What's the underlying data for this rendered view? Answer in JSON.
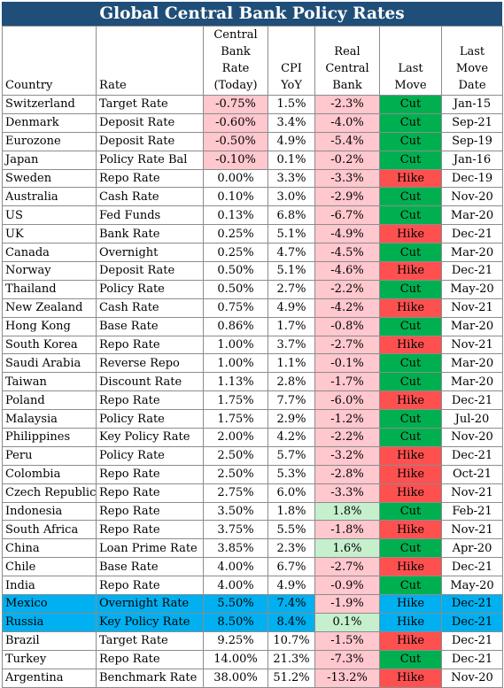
{
  "chart_data": {
    "type": "table",
    "title": "Global Central Bank Policy Rates",
    "columns": [
      "Country",
      "Rate",
      "Central Bank Rate (Today)",
      "CPI YoY",
      "Real Central Bank",
      "Last Move",
      "Last Move Date"
    ],
    "rows": [
      [
        "Switzerland",
        "Target Rate",
        "-0.75%",
        "1.5%",
        "-2.3%",
        "Cut",
        "Jan-15"
      ],
      [
        "Denmark",
        "Deposit Rate",
        "-0.60%",
        "3.4%",
        "-4.0%",
        "Cut",
        "Sep-21"
      ],
      [
        "Eurozone",
        "Deposit Rate",
        "-0.50%",
        "4.9%",
        "-5.4%",
        "Cut",
        "Sep-19"
      ],
      [
        "Japan",
        "Policy Rate Bal",
        "-0.10%",
        "0.1%",
        "-0.2%",
        "Cut",
        "Jan-16"
      ],
      [
        "Sweden",
        "Repo Rate",
        "0.00%",
        "3.3%",
        "-3.3%",
        "Hike",
        "Dec-19"
      ],
      [
        "Australia",
        "Cash Rate",
        "0.10%",
        "3.0%",
        "-2.9%",
        "Cut",
        "Nov-20"
      ],
      [
        "US",
        "Fed Funds",
        "0.13%",
        "6.8%",
        "-6.7%",
        "Cut",
        "Mar-20"
      ],
      [
        "UK",
        "Bank Rate",
        "0.25%",
        "5.1%",
        "-4.9%",
        "Hike",
        "Dec-21"
      ],
      [
        "Canada",
        "Overnight",
        "0.25%",
        "4.7%",
        "-4.5%",
        "Cut",
        "Mar-20"
      ],
      [
        "Norway",
        "Deposit Rate",
        "0.50%",
        "5.1%",
        "-4.6%",
        "Hike",
        "Dec-21"
      ],
      [
        "Thailand",
        "Policy Rate",
        "0.50%",
        "2.7%",
        "-2.2%",
        "Cut",
        "May-20"
      ],
      [
        "New Zealand",
        "Cash Rate",
        "0.75%",
        "4.9%",
        "-4.2%",
        "Hike",
        "Nov-21"
      ],
      [
        "Hong Kong",
        "Base Rate",
        "0.86%",
        "1.7%",
        "-0.8%",
        "Cut",
        "Mar-20"
      ],
      [
        "South Korea",
        "Repo Rate",
        "1.00%",
        "3.7%",
        "-2.7%",
        "Hike",
        "Nov-21"
      ],
      [
        "Saudi Arabia",
        "Reverse Repo",
        "1.00%",
        "1.1%",
        "-0.1%",
        "Cut",
        "Mar-20"
      ],
      [
        "Taiwan",
        "Discount Rate",
        "1.13%",
        "2.8%",
        "-1.7%",
        "Cut",
        "Mar-20"
      ],
      [
        "Poland",
        "Repo Rate",
        "1.75%",
        "7.7%",
        "-6.0%",
        "Hike",
        "Dec-21"
      ],
      [
        "Malaysia",
        "Policy Rate",
        "1.75%",
        "2.9%",
        "-1.2%",
        "Cut",
        "Jul-20"
      ],
      [
        "Philippines",
        "Key Policy Rate",
        "2.00%",
        "4.2%",
        "-2.2%",
        "Cut",
        "Nov-20"
      ],
      [
        "Peru",
        "Policy Rate",
        "2.50%",
        "5.7%",
        "-3.2%",
        "Hike",
        "Dec-21"
      ],
      [
        "Colombia",
        "Repo Rate",
        "2.50%",
        "5.3%",
        "-2.8%",
        "Hike",
        "Oct-21"
      ],
      [
        "Czech Republic",
        "Repo Rate",
        "2.75%",
        "6.0%",
        "-3.3%",
        "Hike",
        "Nov-21"
      ],
      [
        "Indonesia",
        "Repo Rate",
        "3.50%",
        "1.8%",
        "1.8%",
        "Cut",
        "Feb-21"
      ],
      [
        "South Africa",
        "Repo Rate",
        "3.75%",
        "5.5%",
        "-1.8%",
        "Hike",
        "Nov-21"
      ],
      [
        "China",
        "Loan Prime Rate",
        "3.85%",
        "2.3%",
        "1.6%",
        "Cut",
        "Apr-20"
      ],
      [
        "Chile",
        "Base Rate",
        "4.00%",
        "6.7%",
        "-2.7%",
        "Hike",
        "Dec-21"
      ],
      [
        "India",
        "Repo Rate",
        "4.00%",
        "4.9%",
        "-0.9%",
        "Cut",
        "May-20"
      ],
      [
        "Mexico",
        "Overnight Rate",
        "5.50%",
        "7.4%",
        "-1.9%",
        "Hike",
        "Dec-21"
      ],
      [
        "Russia",
        "Key Policy Rate",
        "8.50%",
        "8.4%",
        "0.1%",
        "Hike",
        "Dec-21"
      ],
      [
        "Brazil",
        "Target Rate",
        "9.25%",
        "10.7%",
        "-1.5%",
        "Hike",
        "Dec-21"
      ],
      [
        "Turkey",
        "Repo Rate",
        "14.00%",
        "21.3%",
        "-7.3%",
        "Cut",
        "Dec-21"
      ],
      [
        "Argentina",
        "Benchmark Rate",
        "38.00%",
        "51.2%",
        "-13.2%",
        "Hike",
        "Nov-20"
      ]
    ],
    "highlighted_rows": [
      "Mexico",
      "Russia"
    ],
    "colors": {
      "title_bg": "#1f4e79",
      "title_text": "#ffffff",
      "row_highlight": "#00b0f0",
      "negative_bg": "#ffc7ce",
      "positive_bg": "#c6efce",
      "cut": "#00b050",
      "hike": "#ff5050"
    }
  }
}
